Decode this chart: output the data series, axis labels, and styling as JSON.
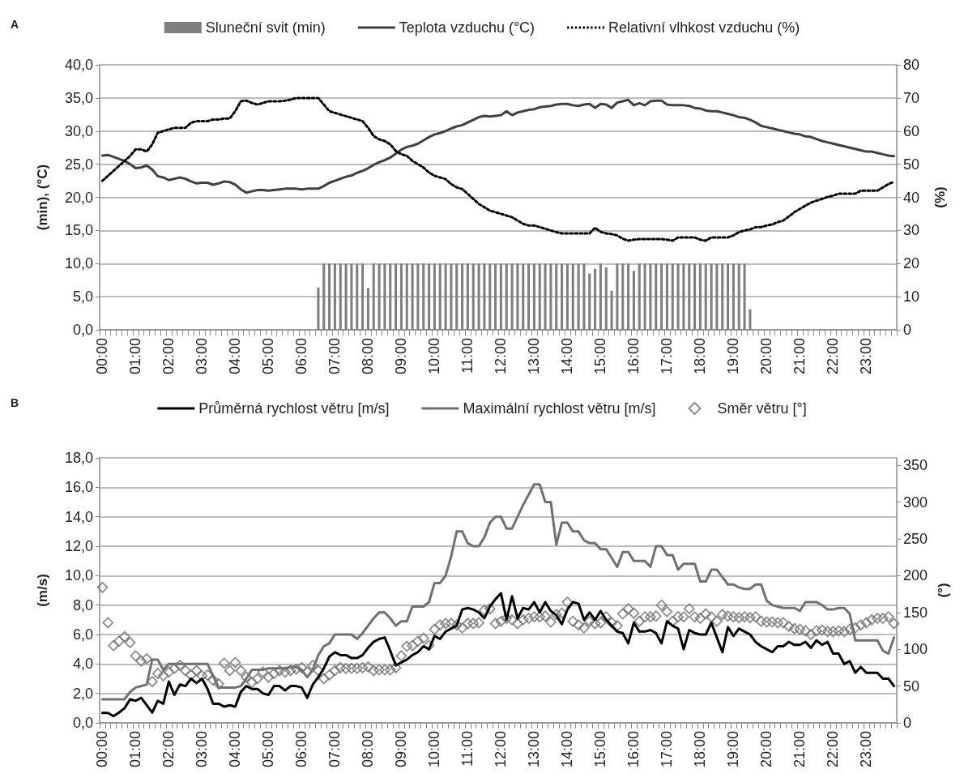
{
  "chart_data": [
    {
      "type": "bar",
      "title": "A",
      "ylabel": "(min), (°C)",
      "y2label": "(%)",
      "legend": "top",
      "grid": "y",
      "categories": [
        "00:00",
        null,
        null,
        null,
        null,
        null,
        "01:00",
        null,
        null,
        null,
        null,
        null,
        "02:00",
        null,
        null,
        null,
        null,
        null,
        "03:00",
        null,
        null,
        null,
        null,
        null,
        "04:00",
        null,
        null,
        null,
        null,
        null,
        "05:00",
        null,
        null,
        null,
        null,
        null,
        "06:00",
        null,
        null,
        null,
        null,
        null,
        "07:00",
        null,
        null,
        null,
        null,
        null,
        "08:00",
        null,
        null,
        null,
        null,
        null,
        "09:00",
        null,
        null,
        null,
        null,
        null,
        "10:00",
        null,
        null,
        null,
        null,
        null,
        "11:00",
        null,
        null,
        null,
        null,
        null,
        "12:00",
        null,
        null,
        null,
        null,
        null,
        "13:00",
        null,
        null,
        null,
        null,
        null,
        "14:00",
        null,
        null,
        null,
        null,
        null,
        "15:00",
        null,
        null,
        null,
        null,
        null,
        "16:00",
        null,
        null,
        null,
        null,
        null,
        "17:00",
        null,
        null,
        null,
        null,
        null,
        "18:00",
        null,
        null,
        null,
        null,
        null,
        "19:00",
        null,
        null,
        null,
        null,
        null,
        "20:00",
        null,
        null,
        null,
        null,
        null,
        "21:00",
        null,
        null,
        null,
        null,
        null,
        "22:00",
        null,
        null,
        null,
        null,
        null,
        "23:00",
        null,
        null,
        null,
        null,
        null
      ],
      "ylim": [
        0,
        40
      ],
      "yticks": [
        {
          "value": 0,
          "label": "0,0"
        },
        {
          "value": 5,
          "label": "5,0"
        },
        {
          "value": 10,
          "label": "10,0"
        },
        {
          "value": 15,
          "label": "15,0"
        },
        {
          "value": 20,
          "label": "20,0"
        },
        {
          "value": 25,
          "label": "25,0"
        },
        {
          "value": 30,
          "label": "30,0"
        },
        {
          "value": 35,
          "label": "35,0"
        },
        {
          "value": 40,
          "label": "40,0"
        }
      ],
      "y2lim": [
        0,
        80
      ],
      "y2ticks": [
        0,
        10,
        20,
        30,
        40,
        50,
        60,
        70,
        80
      ],
      "series": [
        {
          "name": "Sluneční svit (min)",
          "color": "#7f7f7f",
          "values": [
            0,
            0,
            0,
            0,
            0,
            0,
            0,
            0,
            0,
            0,
            0,
            0,
            0,
            0,
            0,
            0,
            0,
            0,
            0,
            0,
            0,
            0,
            0,
            0,
            0,
            0,
            0,
            0,
            0,
            0,
            0,
            0,
            0,
            0,
            0,
            0,
            0,
            0,
            0,
            6.4,
            10,
            10,
            10,
            10,
            10,
            10,
            10,
            10,
            6.3,
            10,
            10,
            10,
            10,
            10,
            10,
            10,
            10,
            10,
            10,
            10,
            10,
            10,
            10,
            10,
            10,
            10,
            10,
            10,
            10,
            10,
            10,
            10,
            10,
            10,
            10,
            10,
            10,
            10,
            10,
            10,
            10,
            10,
            10,
            10,
            10,
            10,
            10,
            10,
            8.5,
            9.2,
            10,
            9.4,
            5.9,
            10,
            10,
            10,
            8.9,
            10,
            10,
            10,
            10,
            10,
            10,
            10,
            10,
            10,
            10,
            10,
            10,
            10,
            10,
            10,
            10,
            10,
            10,
            10,
            10,
            3.1,
            0,
            0,
            0,
            0,
            0,
            0,
            0,
            0,
            0,
            0,
            0,
            0,
            0,
            0,
            0,
            0,
            0,
            0,
            0,
            0,
            0,
            0,
            0,
            0,
            0,
            0
          ]
        },
        {
          "name": "Teplota vzduchu (°C)",
          "type": "line",
          "color": "#404040",
          "line_style": "solid",
          "values": [
            26.3,
            26.4,
            26.1,
            25.8,
            25.5,
            25.0,
            24.4,
            24.5,
            24.8,
            24.2,
            23.2,
            23.0,
            22.6,
            22.8,
            23.0,
            22.8,
            22.4,
            22.1,
            22.2,
            22.2,
            21.9,
            22.1,
            22.4,
            22.3,
            21.9,
            21.2,
            20.7,
            20.9,
            21.1,
            21.1,
            21.0,
            21.1,
            21.2,
            21.3,
            21.3,
            21.3,
            21.2,
            21.3,
            21.3,
            21.3,
            21.7,
            22.2,
            22.5,
            22.8,
            23.1,
            23.3,
            23.7,
            24.0,
            24.4,
            24.9,
            25.3,
            25.6,
            26.0,
            26.6,
            27.2,
            27.6,
            27.8,
            28.1,
            28.6,
            29.1,
            29.5,
            29.7,
            30.0,
            30.4,
            30.7,
            30.9,
            31.3,
            31.7,
            32.1,
            32.3,
            32.2,
            32.3,
            32.4,
            33.0,
            32.4,
            32.8,
            33.0,
            33.2,
            33.3,
            33.6,
            33.7,
            33.8,
            34.0,
            34.1,
            34.1,
            33.9,
            33.8,
            34.0,
            34.1,
            33.5,
            34.1,
            34.0,
            33.5,
            34.3,
            34.5,
            34.7,
            33.9,
            34.2,
            33.9,
            34.5,
            34.6,
            34.6,
            34.0,
            33.9,
            33.9,
            33.9,
            33.8,
            33.5,
            33.4,
            33.1,
            33.0,
            33.0,
            32.8,
            32.6,
            32.4,
            32.1,
            32.0,
            31.7,
            31.3,
            30.8,
            30.6,
            30.4,
            30.2,
            30.0,
            29.8,
            29.6,
            29.5,
            29.2,
            29.1,
            28.8,
            28.5,
            28.3,
            28.1,
            27.9,
            27.7,
            27.5,
            27.3,
            27.1,
            26.9,
            26.9,
            26.7,
            26.5,
            26.3,
            26.2
          ]
        },
        {
          "name": "Relativní vlhkost vzduchu (%)",
          "type": "line",
          "axis": "y2",
          "color": "#000000",
          "line_style": "dotted",
          "values": [
            45,
            46.5,
            48,
            49.5,
            51,
            52.5,
            54.5,
            54.5,
            53.8,
            56,
            59.5,
            60,
            60.5,
            61,
            61,
            61,
            62.5,
            63,
            63,
            63,
            63.5,
            63.5,
            63.8,
            63.8,
            66,
            69,
            69.2,
            68.5,
            68,
            68.5,
            69,
            69,
            69,
            69.2,
            69.5,
            70,
            70,
            70,
            70,
            70,
            68,
            66,
            65.5,
            65,
            64.5,
            64,
            63.5,
            63,
            61,
            58.5,
            57.5,
            57,
            56,
            54,
            53,
            52.5,
            51,
            50,
            49,
            47.5,
            46.5,
            46,
            45.5,
            44,
            43,
            42.5,
            41,
            39.5,
            38,
            37,
            36,
            35.5,
            35,
            34.5,
            34,
            33,
            32,
            31.5,
            31.5,
            31,
            30.5,
            30,
            29.5,
            29.1,
            29.1,
            29.1,
            29.1,
            29.1,
            29.1,
            30.8,
            29.6,
            29.1,
            28.9,
            28.5,
            27.5,
            26.9,
            27.2,
            27.4,
            27.4,
            27.4,
            27.4,
            27.4,
            27.2,
            26.9,
            27.9,
            27.9,
            27.9,
            27.9,
            27.2,
            26.9,
            27.9,
            27.9,
            27.9,
            27.9,
            28.5,
            29.5,
            30,
            30.3,
            31,
            31,
            31.5,
            31.8,
            32.5,
            33,
            34.2,
            35.5,
            36.5,
            37.5,
            38.4,
            39,
            39.5,
            40.1,
            40.5,
            41.1,
            41.1,
            41.1,
            41.1,
            42,
            42,
            42,
            42,
            43,
            44,
            44.7
          ]
        }
      ]
    },
    {
      "type": "line",
      "title": "B",
      "ylabel": "(m/s)",
      "y2label": "(°)",
      "legend": "top",
      "grid": "y",
      "categories": [
        "00:00",
        null,
        null,
        null,
        null,
        null,
        "01:00",
        null,
        null,
        null,
        null,
        null,
        "02:00",
        null,
        null,
        null,
        null,
        null,
        "03:00",
        null,
        null,
        null,
        null,
        null,
        "04:00",
        null,
        null,
        null,
        null,
        null,
        "05:00",
        null,
        null,
        null,
        null,
        null,
        "06:00",
        null,
        null,
        null,
        null,
        null,
        "07:00",
        null,
        null,
        null,
        null,
        null,
        "08:00",
        null,
        null,
        null,
        null,
        null,
        "09:00",
        null,
        null,
        null,
        null,
        null,
        "10:00",
        null,
        null,
        null,
        null,
        null,
        "11:00",
        null,
        null,
        null,
        null,
        null,
        "12:00",
        null,
        null,
        null,
        null,
        null,
        "13:00",
        null,
        null,
        null,
        null,
        null,
        "14:00",
        null,
        null,
        null,
        null,
        null,
        "15:00",
        null,
        null,
        null,
        null,
        null,
        "16:00",
        null,
        null,
        null,
        null,
        null,
        "17:00",
        null,
        null,
        null,
        null,
        null,
        "18:00",
        null,
        null,
        null,
        null,
        null,
        "19:00",
        null,
        null,
        null,
        null,
        null,
        "20:00",
        null,
        null,
        null,
        null,
        null,
        "21:00",
        null,
        null,
        null,
        null,
        null,
        "22:00",
        null,
        null,
        null,
        null,
        null,
        "23:00",
        null,
        null,
        null,
        null,
        null
      ],
      "ylim": [
        0,
        18
      ],
      "yticks": [
        {
          "value": 0,
          "label": "0,0"
        },
        {
          "value": 2,
          "label": "2,0"
        },
        {
          "value": 4,
          "label": "4,0"
        },
        {
          "value": 6,
          "label": "6,0"
        },
        {
          "value": 8,
          "label": "8,0"
        },
        {
          "value": 10,
          "label": "10,0"
        },
        {
          "value": 12,
          "label": "12,0"
        },
        {
          "value": 14,
          "label": "14,0"
        },
        {
          "value": 16,
          "label": "16,0"
        },
        {
          "value": 18,
          "label": "18,0"
        }
      ],
      "y2lim": [
        0,
        360
      ],
      "y2ticks": [
        0,
        50,
        100,
        150,
        200,
        250,
        300,
        350
      ],
      "series": [
        {
          "name": "Průměrná rychlost větru [m/s]",
          "color": "#000000",
          "line_style": "solid",
          "values": [
            0.67,
            0.67,
            0.45,
            0.7,
            1.0,
            1.6,
            1.5,
            1.7,
            1.2,
            0.7,
            1.5,
            1.3,
            2.8,
            1.9,
            2.6,
            2.5,
            3.0,
            2.7,
            3.0,
            2.3,
            1.3,
            1.3,
            1.1,
            1.2,
            1.1,
            2.1,
            2.5,
            2.3,
            2.3,
            2.0,
            1.9,
            2.5,
            2.5,
            2.2,
            2.5,
            2.5,
            2.4,
            1.7,
            2.6,
            3.1,
            3.7,
            4.5,
            4.8,
            4.6,
            4.6,
            4.4,
            4.4,
            4.6,
            5.1,
            5.5,
            5.7,
            5.8,
            4.9,
            3.9,
            4.1,
            4.3,
            4.6,
            4.8,
            5.2,
            5.0,
            5.9,
            5.7,
            6.2,
            6.4,
            6.6,
            7.7,
            7.8,
            7.7,
            7.5,
            7.1,
            7.9,
            8.4,
            8.8,
            7.0,
            8.6,
            7.1,
            7.8,
            7.7,
            8.2,
            7.5,
            8.2,
            7.6,
            7.3,
            6.7,
            7.7,
            8.2,
            8.1,
            7.0,
            7.5,
            7.0,
            7.6,
            7.0,
            6.6,
            6.2,
            6.1,
            5.4,
            6.8,
            6.2,
            6.2,
            6.3,
            6.1,
            5.4,
            6.9,
            6.6,
            6.4,
            5.0,
            6.3,
            6.1,
            6.0,
            6.0,
            6.8,
            5.8,
            4.8,
            6.5,
            5.9,
            6.4,
            6.2,
            6.0,
            5.5,
            5.2,
            5.0,
            4.8,
            5.2,
            5.2,
            5.5,
            5.3,
            5.3,
            5.5,
            5.1,
            5.6,
            5.3,
            5.5,
            4.7,
            4.7,
            4.0,
            4.2,
            3.4,
            3.8,
            3.4,
            3.4,
            3.4,
            3.0,
            3.0,
            2.5
          ]
        },
        {
          "name": "Maximální rychlost větru [m/s]",
          "color": "#707070",
          "line_style": "solid",
          "values": [
            1.6,
            1.6,
            1.6,
            1.6,
            1.6,
            2.1,
            2.4,
            2.5,
            2.6,
            4.3,
            4.3,
            3.6,
            4.0,
            4.0,
            4.0,
            4.0,
            4.0,
            4.0,
            4.0,
            4.0,
            3.2,
            2.4,
            2.4,
            2.4,
            2.4,
            2.5,
            3.0,
            3.6,
            3.6,
            3.6,
            3.7,
            3.7,
            3.7,
            3.7,
            3.8,
            3.8,
            3.6,
            3.1,
            3.6,
            4.6,
            5.2,
            5.4,
            6.0,
            6.0,
            6.0,
            6.0,
            5.7,
            6.1,
            6.6,
            7.1,
            7.5,
            7.5,
            7.1,
            6.6,
            6.9,
            6.9,
            7.9,
            7.9,
            7.9,
            8.2,
            9.5,
            9.5,
            10.0,
            11.3,
            13.0,
            13.0,
            12.2,
            12.0,
            12.0,
            12.6,
            13.6,
            14.0,
            14.0,
            13.2,
            13.2,
            14.0,
            14.8,
            15.5,
            16.2,
            16.2,
            15.0,
            15.0,
            12.1,
            13.6,
            13.6,
            13.0,
            13.0,
            12.4,
            12.2,
            12.2,
            11.8,
            11.8,
            11.2,
            10.6,
            11.6,
            11.6,
            11.0,
            11.0,
            11.0,
            10.6,
            12.0,
            12.0,
            11.4,
            11.4,
            10.4,
            10.8,
            10.8,
            10.8,
            9.6,
            9.6,
            10.4,
            10.4,
            9.9,
            9.4,
            9.4,
            9.2,
            9.1,
            9.1,
            9.4,
            9.4,
            8.3,
            8.0,
            7.9,
            7.8,
            7.8,
            7.8,
            7.6,
            8.2,
            8.2,
            8.2,
            8.0,
            7.7,
            7.7,
            7.8,
            7.8,
            7.4,
            5.6,
            5.6,
            5.6,
            5.6,
            5.6,
            4.9,
            4.7,
            5.8
          ]
        },
        {
          "name": "Směr větru [°]",
          "type": "scatter",
          "axis": "y2",
          "color": "#707070",
          "marker": "diamond",
          "values": [
            184,
            136,
            105,
            111,
            117,
            109,
            91,
            84,
            87,
            56,
            67,
            64,
            69,
            74,
            78,
            71,
            65,
            71,
            64,
            65,
            58,
            53,
            81,
            71,
            82,
            71,
            62,
            55,
            60,
            69,
            62,
            67,
            71,
            69,
            71,
            73,
            75,
            69,
            78,
            71,
            60,
            65,
            71,
            75,
            74,
            74,
            74,
            75,
            76,
            71,
            72,
            72,
            72,
            75,
            91,
            104,
            105,
            111,
            115,
            105,
            127,
            133,
            135,
            135,
            133,
            129,
            135,
            135,
            136,
            153,
            155,
            135,
            138,
            142,
            140,
            135,
            140,
            142,
            144,
            144,
            145,
            137,
            147,
            149,
            164,
            138,
            133,
            129,
            138,
            135,
            136,
            144,
            136,
            132,
            148,
            155,
            149,
            138,
            144,
            144,
            145,
            160,
            151,
            138,
            144,
            144,
            155,
            144,
            142,
            148,
            144,
            138,
            147,
            145,
            144,
            143,
            144,
            143,
            144,
            138,
            137,
            137,
            136,
            136,
            131,
            128,
            127,
            125,
            120,
            125,
            126,
            124,
            124,
            125,
            124,
            127,
            129,
            133,
            136,
            140,
            142,
            142,
            144,
            135
          ]
        }
      ]
    }
  ]
}
